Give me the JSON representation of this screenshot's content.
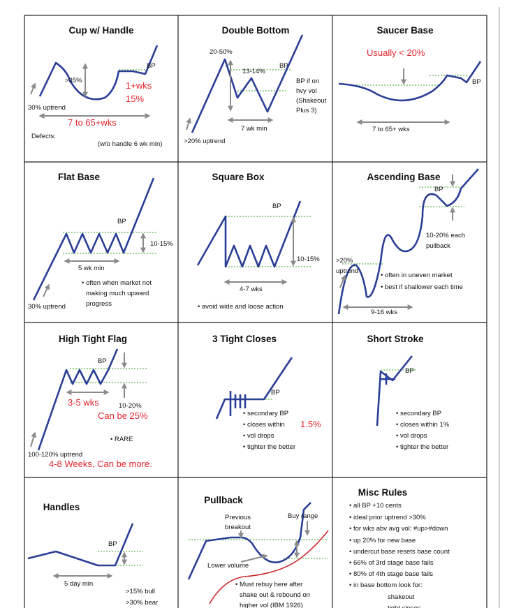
{
  "cells": [
    {
      "title": "Cup w/ Handle",
      "labels": [
        "BP",
        ">35%",
        "1+wks",
        "15%",
        "30% uptrend",
        "7 to 65+wks",
        "Defects:",
        "(w/o handle 6 wk min)"
      ]
    },
    {
      "title": "Double Bottom",
      "labels": [
        "20-50%",
        "13-14%",
        "BP",
        "BP if on",
        "hvy vol",
        "(Shakeout",
        "Plus 3)",
        "7 wk min",
        ">20% uptrend"
      ]
    },
    {
      "title": "Saucer Base",
      "labels": [
        "Usually < 20%",
        "BP",
        "7 to 65+ wks"
      ]
    },
    {
      "title": "Flat Base",
      "labels": [
        "BP",
        "10-15%",
        "5 wk min",
        "• often when market not",
        "making much upward",
        "progress",
        "30% uptrend"
      ]
    },
    {
      "title": "Square Box",
      "labels": [
        "BP",
        "10-15%",
        "4-7 wks",
        "• avoid wide and loose action"
      ]
    },
    {
      "title": "Ascending Base",
      "labels": [
        "BP",
        "10-20% each",
        "pullback",
        ">20%",
        "uptrend",
        "• often in uneven market",
        "• best if shallower each time",
        "9-16 wks"
      ]
    },
    {
      "title": "High Tight Flag",
      "labels": [
        "BP",
        "3-5 wks",
        "10-20%",
        "Can be 25%",
        "• RARE",
        "100-120% uptrend",
        "4-8 Weeks, Can be more."
      ]
    },
    {
      "title": "3 Tight Closes",
      "labels": [
        "BP",
        "• secondary BP",
        "• closes within",
        "1.5%",
        "• vol drops",
        "• tighter the better"
      ]
    },
    {
      "title": "Short Stroke",
      "labels": [
        "BP",
        "• secondary BP",
        "• closes within 1%",
        "• vol drops",
        "• tighter the better"
      ]
    },
    {
      "title": "Handles",
      "labels": [
        "BP",
        "5 day min",
        ">15% bull",
        ">30% bear"
      ]
    },
    {
      "title": "Pullback",
      "labels": [
        "Previous",
        "breakout",
        "Buy range",
        "Lower volume",
        "• Must rebuy here after",
        "shake out & rebound on",
        "higher vol (IBM 1926)"
      ]
    },
    {
      "title": "Misc Rules",
      "labels": [
        "• all BP +10 cents",
        "• ideal prior uptrend >30%",
        "• for wks abv avg vol: #up>#down",
        "• up 20% for new base",
        "• undercut base resets base count",
        "• 66% of 3rd stage base fails",
        "• 80% of 4th stage base fails",
        "• in base bottom look for:",
        "shakeout",
        "tight closes"
      ]
    }
  ]
}
